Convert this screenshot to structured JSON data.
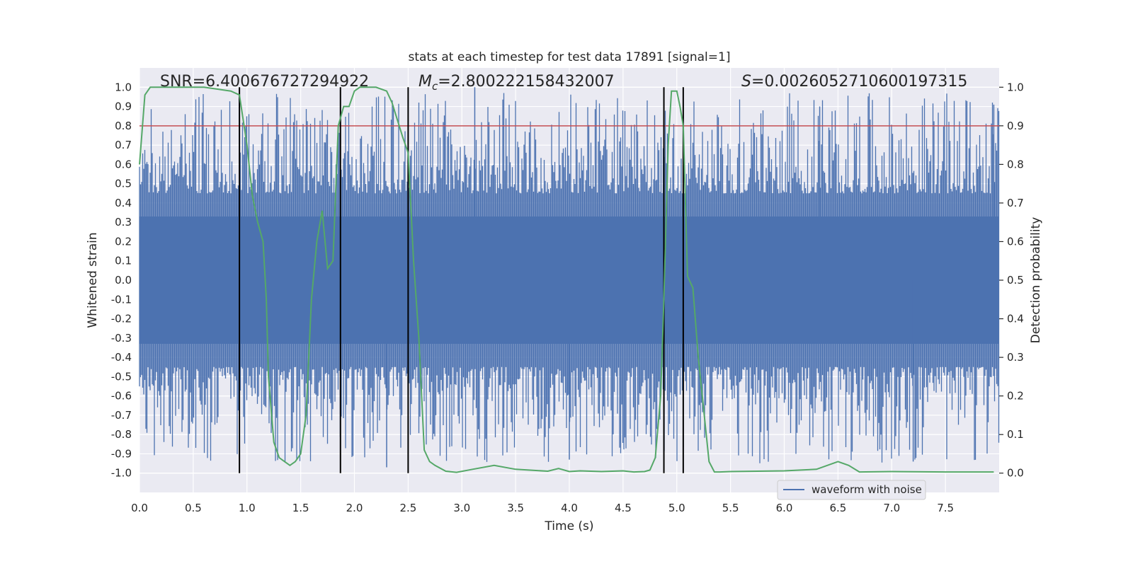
{
  "chart_data": {
    "type": "line",
    "title": "stats at each timestep for test data 17891 [signal=1]",
    "xlabel": "Time (s)",
    "ylabel": "Whitened strain",
    "y2label": "Detection probability",
    "xlim": [
      0,
      8
    ],
    "ylim": [
      -1.1,
      1.1
    ],
    "y2lim": [
      -0.05,
      1.05
    ],
    "xticks": [
      "0.0",
      "0.5",
      "1.0",
      "1.5",
      "2.0",
      "2.5",
      "3.0",
      "3.5",
      "4.0",
      "4.5",
      "5.0",
      "5.5",
      "6.0",
      "6.5",
      "7.0",
      "7.5"
    ],
    "xtick_values": [
      0,
      0.5,
      1,
      1.5,
      2,
      2.5,
      3,
      3.5,
      4,
      4.5,
      5,
      5.5,
      6,
      6.5,
      7,
      7.5
    ],
    "yticks": [
      "1.0",
      "0.9",
      "0.8",
      "0.7",
      "0.6",
      "0.5",
      "0.4",
      "0.3",
      "0.2",
      "0.1",
      "0.0",
      "-0.1",
      "-0.2",
      "-0.3",
      "-0.4",
      "-0.5",
      "-0.6",
      "-0.7",
      "-0.8",
      "-0.9",
      "-1.0"
    ],
    "ytick_values": [
      1,
      0.9,
      0.8,
      0.7,
      0.6,
      0.5,
      0.4,
      0.3,
      0.2,
      0.1,
      0,
      -0.1,
      -0.2,
      -0.3,
      -0.4,
      -0.5,
      -0.6,
      -0.7,
      -0.8,
      -0.9,
      -1.0
    ],
    "y2ticks": [
      "1.0",
      "0.9",
      "0.8",
      "0.7",
      "0.6",
      "0.5",
      "0.4",
      "0.3",
      "0.2",
      "0.1",
      "0.0"
    ],
    "y2tick_values": [
      1,
      0.9,
      0.8,
      0.7,
      0.6,
      0.5,
      0.4,
      0.3,
      0.2,
      0.1,
      0
    ],
    "annotations": {
      "snr": "SNR=6.400676727294922",
      "mc_symbol": "M",
      "mc_sub": "c",
      "mc_value": "=2.800222158432007",
      "s_symbol": "S",
      "s_value": "=0.0026052710600197315"
    },
    "threshold": 0.9,
    "vlines": [
      0.93,
      1.87,
      2.5,
      4.88,
      5.06
    ],
    "series": [
      {
        "name": "waveform with noise",
        "role": "strain",
        "envelope_upper": 0.6,
        "envelope_lower": -0.6,
        "peak_max": 1.0,
        "peak_min": -0.97
      },
      {
        "name": "detection probability",
        "role": "probability",
        "x": [
          0,
          0.05,
          0.1,
          0.2,
          0.4,
          0.6,
          0.85,
          0.93,
          1.0,
          1.05,
          1.1,
          1.15,
          1.18,
          1.2,
          1.25,
          1.3,
          1.35,
          1.4,
          1.45,
          1.5,
          1.55,
          1.6,
          1.65,
          1.7,
          1.75,
          1.8,
          1.85,
          1.9,
          1.95,
          2.0,
          2.05,
          2.1,
          2.2,
          2.3,
          2.35,
          2.45,
          2.5,
          2.55,
          2.6,
          2.65,
          2.7,
          2.75,
          2.85,
          2.95,
          3.1,
          3.3,
          3.5,
          3.8,
          3.9,
          4.0,
          4.1,
          4.3,
          4.5,
          4.6,
          4.7,
          4.75,
          4.8,
          4.85,
          4.88,
          4.92,
          4.95,
          5.0,
          5.03,
          5.06,
          5.1,
          5.15,
          5.2,
          5.3,
          5.35,
          5.4,
          5.5,
          6.0,
          6.3,
          6.5,
          6.6,
          6.7,
          7.0,
          7.5,
          7.95
        ],
        "y": [
          0.8,
          0.98,
          1.0,
          1.0,
          1.0,
          1.0,
          0.99,
          0.98,
          0.85,
          0.72,
          0.65,
          0.6,
          0.45,
          0.25,
          0.08,
          0.04,
          0.03,
          0.02,
          0.03,
          0.05,
          0.15,
          0.45,
          0.6,
          0.68,
          0.53,
          0.55,
          0.9,
          0.95,
          0.95,
          0.99,
          1.0,
          1.0,
          1.0,
          0.99,
          0.96,
          0.87,
          0.83,
          0.55,
          0.35,
          0.06,
          0.03,
          0.02,
          0.005,
          0.002,
          0.01,
          0.02,
          0.01,
          0.005,
          0.012,
          0.004,
          0.006,
          0.004,
          0.006,
          0.003,
          0.004,
          0.008,
          0.04,
          0.2,
          0.45,
          0.85,
          0.99,
          0.99,
          0.95,
          0.9,
          0.51,
          0.48,
          0.3,
          0.03,
          0.003,
          0.003,
          0.004,
          0.006,
          0.01,
          0.03,
          0.02,
          0.003,
          0.004,
          0.003,
          0.003
        ]
      }
    ],
    "legend": {
      "placement": "bottom-center",
      "entries": [
        "waveform with noise"
      ]
    },
    "colors": {
      "background": "#eaeaf2",
      "grid": "#ffffff",
      "strain": "#4c72b0",
      "probability": "#55a868",
      "threshold": "#c44e52",
      "vline": "#000000"
    }
  }
}
